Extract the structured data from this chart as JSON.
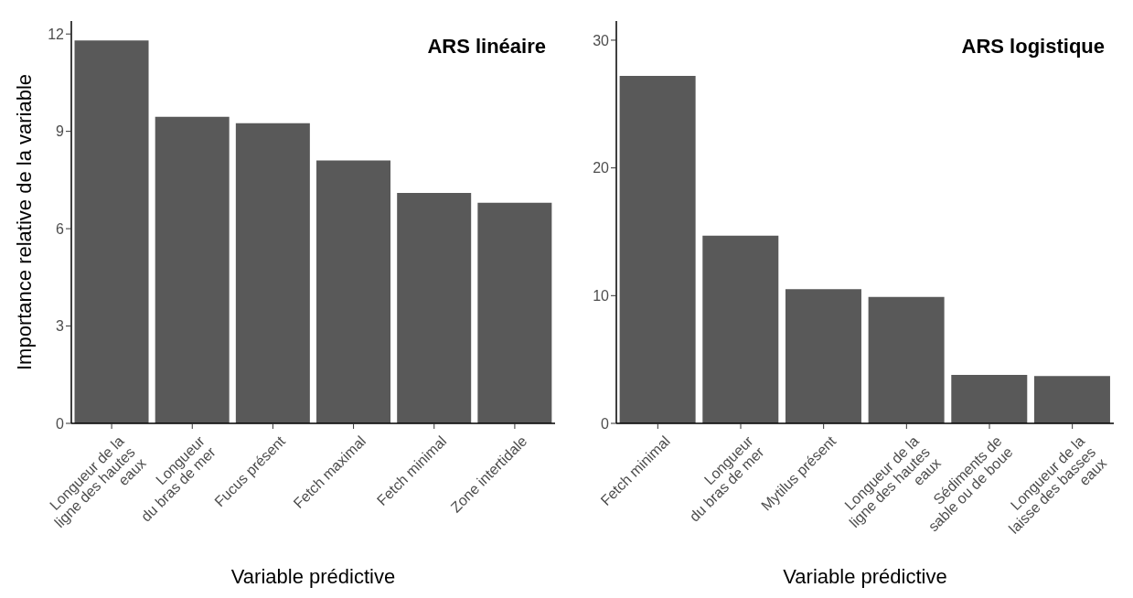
{
  "chart_data": [
    {
      "type": "bar",
      "title": "ARS linéaire",
      "xlabel": "Variable prédictive",
      "ylabel": "Importance relative de la variable",
      "categories": [
        "Longueur de la\nligne des hautes\neaux",
        "Longueur\ndu bras de mer",
        "Fucus présent",
        "Fetch maximal",
        "Fetch minimal",
        "Zone intertidale"
      ],
      "values": [
        11.8,
        9.45,
        9.25,
        8.1,
        7.1,
        6.8
      ],
      "color": "#595959",
      "ylim": [
        0,
        12.4
      ],
      "yticks": [
        0,
        3,
        6,
        9,
        12
      ],
      "grid": false,
      "legend": false
    },
    {
      "type": "bar",
      "title": "ARS logistique",
      "xlabel": "Variable prédictive",
      "categories": [
        "Fetch minimal",
        "Longueur\ndu bras de mer",
        "Mytilus présent",
        "Longueur de la\nligne des hautes\neaux",
        "Sédiments de\nsable ou de boue",
        "Longueur de la\nlaisse des basses\neaux"
      ],
      "values": [
        27.2,
        14.7,
        10.5,
        9.9,
        3.8,
        3.7
      ],
      "color": "#595959",
      "ylim": [
        0,
        31.5
      ],
      "yticks": [
        0,
        10,
        20,
        30
      ],
      "grid": false,
      "legend": false
    }
  ]
}
